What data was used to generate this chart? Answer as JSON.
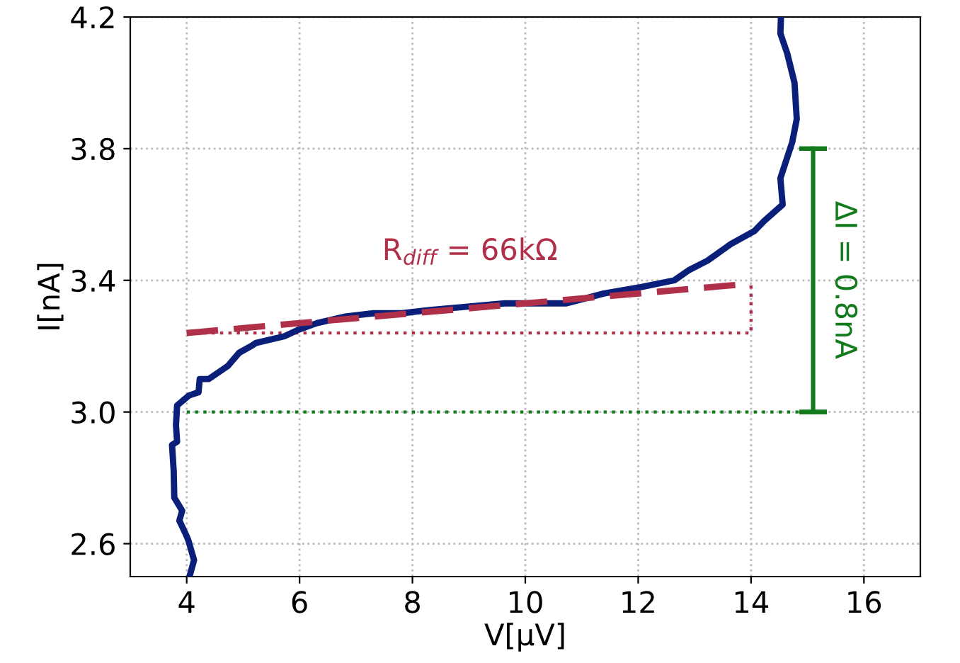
{
  "chart_data": {
    "type": "line",
    "xlabel": "V[μV]",
    "ylabel": "I[nA]",
    "xlim": [
      3,
      17
    ],
    "ylim": [
      2.5,
      4.2
    ],
    "xticks": [
      4,
      6,
      8,
      10,
      12,
      14,
      16
    ],
    "yticks": [
      2.6,
      {
        "value": 3.0,
        "label": "3.0"
      },
      3.4,
      3.8,
      4.2
    ],
    "grid": true,
    "marker": "none",
    "series": [
      {
        "color": "#0a1f7a",
        "line_style": "solid",
        "x": [
          4.05,
          4.13,
          4.03,
          3.98,
          3.87,
          3.92,
          3.78,
          3.77,
          3.74,
          3.83,
          3.81,
          3.83,
          4.04,
          4.21,
          4.23,
          4.39,
          4.73,
          4.93,
          5.14,
          5.23,
          5.73,
          5.98,
          6.31,
          6.81,
          7.31,
          7.81,
          8.31,
          8.98,
          9.64,
          10.73,
          11.39,
          12.06,
          12.64,
          12.89,
          13.23,
          13.64,
          14.06,
          14.23,
          14.56,
          14.52,
          14.73,
          14.81,
          14.77,
          14.64,
          14.52,
          14.53
        ],
        "values": [
          2.5,
          2.55,
          2.61,
          2.63,
          2.67,
          2.7,
          2.74,
          2.82,
          2.9,
          2.91,
          2.96,
          3.02,
          3.05,
          3.06,
          3.1,
          3.1,
          3.14,
          3.18,
          3.2,
          3.21,
          3.23,
          3.25,
          3.27,
          3.29,
          3.3,
          3.3,
          3.31,
          3.32,
          3.33,
          3.33,
          3.36,
          3.38,
          3.4,
          3.43,
          3.46,
          3.51,
          3.55,
          3.58,
          3.63,
          3.71,
          3.82,
          3.89,
          4.0,
          4.09,
          4.15,
          4.2
        ]
      },
      {
        "color": "#b0304a",
        "line_style": "dashed",
        "x": [
          4,
          14
        ],
        "values": [
          3.24,
          3.39
        ]
      },
      {
        "color": "#b0304a",
        "line_style": "dotted",
        "x": [
          4,
          14,
          14
        ],
        "values": [
          3.24,
          3.24,
          3.39
        ]
      },
      {
        "color": "#117a1a",
        "line_style": "dotted",
        "x": [
          4,
          15.1
        ],
        "values": [
          3.0,
          3.0
        ]
      },
      {
        "color": "#117a1a",
        "line_style": "solid",
        "x": [
          15.1,
          15.1
        ],
        "values": [
          3.0,
          3.8
        ],
        "errors": [
          0,
          0
        ]
      }
    ],
    "annotations": [
      "R$_{diff}$ = 66kΩ",
      "ΔI = 0.8nA"
    ]
  }
}
